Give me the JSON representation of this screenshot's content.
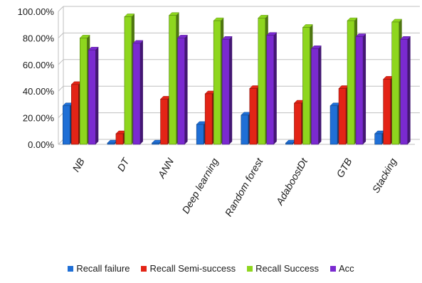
{
  "chart_data": {
    "type": "bar",
    "title": "",
    "xlabel": "",
    "ylabel": "",
    "ylim": [
      0,
      100
    ],
    "yticks": [
      "0.00%",
      "20.00%",
      "40.00%",
      "60.00%",
      "80.00%",
      "100.00%"
    ],
    "grid": true,
    "legend_position": "bottom",
    "categories": [
      "NB",
      "DT",
      "ANN",
      "Deep learning",
      "Random forest",
      "AdaboostDt",
      "GTB",
      "Stacking"
    ],
    "series": [
      {
        "name": "Recall failure",
        "color": "#1f6fd6",
        "values": [
          29,
          1,
          1,
          15,
          22,
          1,
          29,
          8
        ]
      },
      {
        "name": "Recall Semi-success",
        "color": "#e32416",
        "values": [
          45,
          8,
          34,
          38,
          42,
          31,
          42,
          49
        ]
      },
      {
        "name": "Recall Success",
        "color": "#8ed61e",
        "values": [
          80,
          96,
          97,
          93,
          95,
          88,
          93,
          92
        ]
      },
      {
        "name": "Acc",
        "color": "#7a2ad0",
        "values": [
          71,
          76,
          80,
          79,
          82,
          72,
          81,
          79
        ]
      }
    ]
  }
}
